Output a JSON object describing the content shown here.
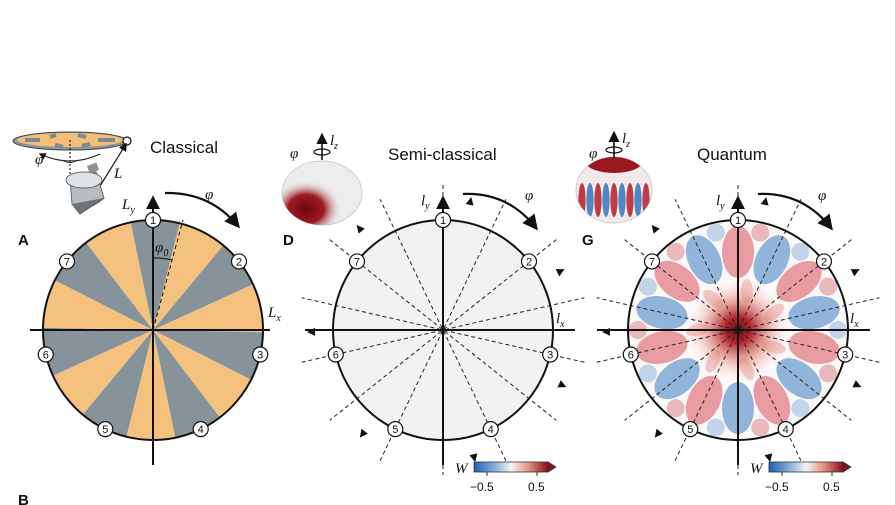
{
  "titles": {
    "a": "Classical",
    "b": "Semi-classical",
    "c": "Quantum"
  },
  "panel_labels": {
    "a": "A",
    "b": "D",
    "c": "G",
    "partial": "B"
  },
  "axes": {
    "a": {
      "x": "L",
      "x_sub": "x",
      "y": "L",
      "y_sub": "y"
    },
    "b": {
      "x": "l",
      "x_sub": "x",
      "y": "l",
      "y_sub": "y"
    },
    "c": {
      "x": "l",
      "x_sub": "x",
      "y": "l",
      "y_sub": "y"
    }
  },
  "angle_label": "φ",
  "phase_label": "φ",
  "phase_sub": "0",
  "rotor_label": "L",
  "lz_label": "l",
  "lz_sub": "z",
  "markers": [
    "1",
    "2",
    "3",
    "4",
    "5",
    "6",
    "7"
  ],
  "colorbar": {
    "label": "W",
    "min_label": "−0.5",
    "max_label": "0.5"
  },
  "colors": {
    "orange": "#f4c27e",
    "slate": "#86939a",
    "dark_red": "#7a0a14",
    "blue": "#2b6cb5"
  }
}
